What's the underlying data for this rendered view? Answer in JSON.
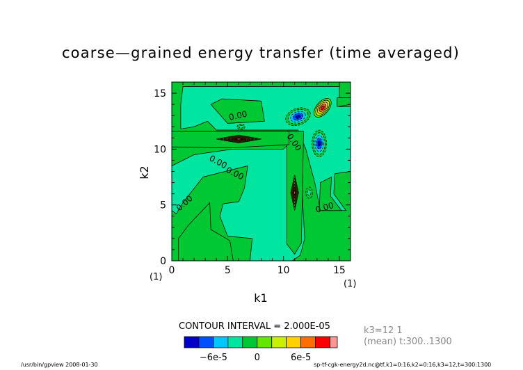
{
  "chart_data": {
    "type": "heatmap",
    "title": "coarse—grained energy transfer (time averaged)",
    "xlabel": "k1",
    "ylabel": "k2",
    "xlim": [
      0,
      16
    ],
    "ylim": [
      0,
      16
    ],
    "x_ticks": [
      "0",
      "5",
      "10",
      "15"
    ],
    "y_ticks": [
      "0",
      "5",
      "10",
      "15"
    ],
    "x_index_label": "(1)",
    "x_index_label_right": "(1)",
    "y_index_label": "(1)",
    "contour_interval_text": "CONTOUR INTERVAL = 2.000E-05",
    "contour_labels": [
      "0.00",
      "0.00",
      "0.00",
      "0.00",
      "0.00",
      "0.00"
    ],
    "colorbar": {
      "levels": [
        -0.0001,
        -8e-05,
        -6e-05,
        -4e-05,
        -2e-05,
        0,
        2e-05,
        4e-05,
        6e-05,
        8e-05,
        0.0001,
        0.00012
      ],
      "colors": [
        "#0000c8",
        "#0050ff",
        "#00c8ff",
        "#00e6a0",
        "#00c832",
        "#64e600",
        "#c8f000",
        "#ffd200",
        "#ff6e00",
        "#ff0000",
        "#ff9696"
      ],
      "tick_labels": [
        "−6e-5",
        "0",
        "6e-5"
      ]
    },
    "features": [
      {
        "kind": "min",
        "k1": 11.3,
        "k2": 12.9,
        "value": -9e-05
      },
      {
        "kind": "min",
        "k1": 13.2,
        "k2": 10.5,
        "value": -9e-05
      },
      {
        "kind": "min",
        "k1": 6.2,
        "k2": 12.0,
        "value": -3e-05
      },
      {
        "kind": "min",
        "k1": 12.3,
        "k2": 6.1,
        "value": -3e-05
      },
      {
        "kind": "max",
        "k1": 6.0,
        "k2": 10.9,
        "value": 0.00011
      },
      {
        "kind": "max",
        "k1": 11.0,
        "k2": 6.1,
        "value": 0.00011
      },
      {
        "kind": "max",
        "k1": 13.5,
        "k2": 13.7,
        "value": 9e-05
      }
    ]
  },
  "side_info": {
    "line1": "k3=12  1",
    "line2": "(mean) t:300..1300"
  },
  "footer": {
    "left": "/usr/bin/gpview   2008-01-30",
    "right": "sp-tf-cgk-energy2d.nc@tf,k1=0:16,k2=0:16,k3=12,t=300:1300"
  }
}
